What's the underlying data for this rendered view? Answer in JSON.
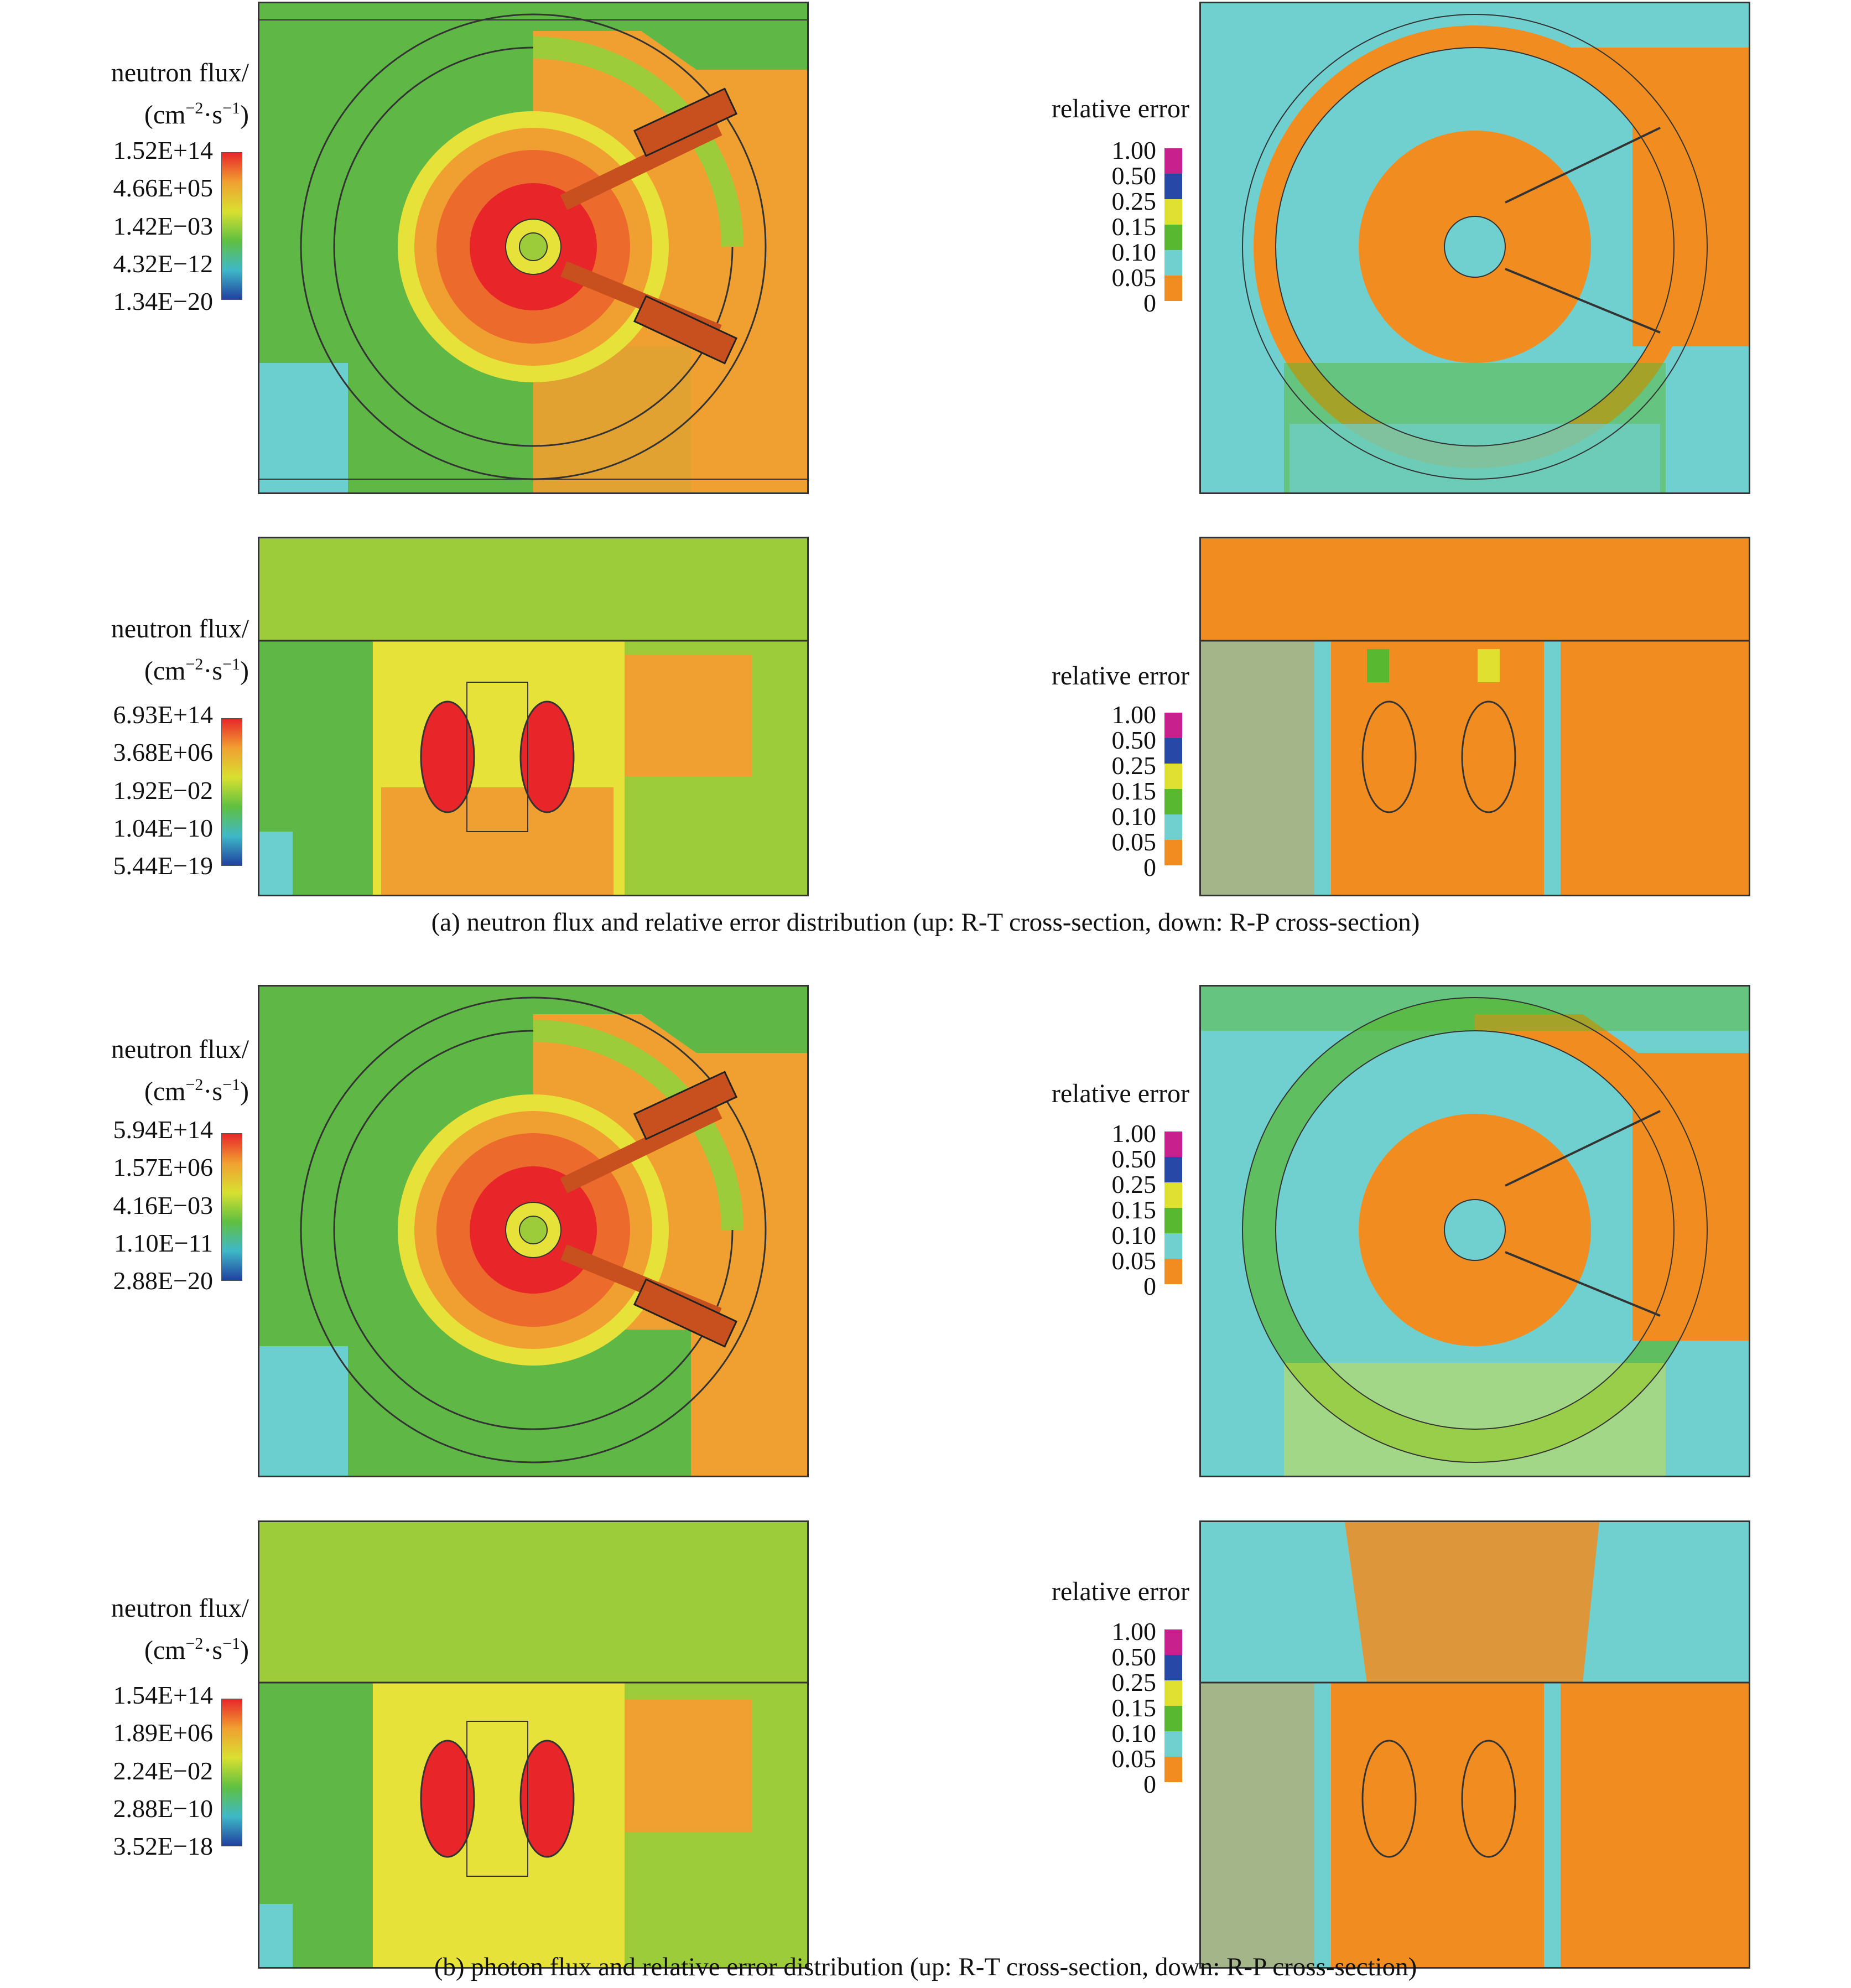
{
  "flux_legends": [
    {
      "title_line1": "neutron flux/",
      "unit_base": "(cm",
      "unit_exp1": "−2",
      "unit_mid": "·s",
      "unit_exp2": "−1",
      "unit_end": ")",
      "ticks": [
        "1.52E+14",
        "4.66E+05",
        "1.42E−03",
        "4.32E−12",
        "1.34E−20"
      ]
    },
    {
      "title_line1": "neutron flux/",
      "unit_base": "(cm",
      "unit_exp1": "−2",
      "unit_mid": "·s",
      "unit_exp2": "−1",
      "unit_end": ")",
      "ticks": [
        "6.93E+14",
        "3.68E+06",
        "1.92E−02",
        "1.04E−10",
        "5.44E−19"
      ]
    },
    {
      "title_line1": "neutron flux/",
      "unit_base": "(cm",
      "unit_exp1": "−2",
      "unit_mid": "·s",
      "unit_exp2": "−1",
      "unit_end": ")",
      "ticks": [
        "5.94E+14",
        "1.57E+06",
        "4.16E−03",
        "1.10E−11",
        "2.88E−20"
      ]
    },
    {
      "title_line1": "neutron flux/",
      "unit_base": "(cm",
      "unit_exp1": "−2",
      "unit_mid": "·s",
      "unit_exp2": "−1",
      "unit_end": ")",
      "ticks": [
        "1.54E+14",
        "1.89E+06",
        "2.24E−02",
        "2.88E−10",
        "3.52E−18"
      ]
    }
  ],
  "error_legends": [
    {
      "title": "relative error",
      "ticks": [
        "1.00",
        "0.50",
        "0.25",
        "0.15",
        "0.10",
        "0.05",
        "0"
      ]
    },
    {
      "title": "relative error",
      "ticks": [
        "1.00",
        "0.50",
        "0.25",
        "0.15",
        "0.10",
        "0.05",
        "0"
      ]
    },
    {
      "title": "relative error",
      "ticks": [
        "1.00",
        "0.50",
        "0.25",
        "0.15",
        "0.10",
        "0.05",
        "0"
      ]
    },
    {
      "title": "relative error",
      "ticks": [
        "1.00",
        "0.50",
        "0.25",
        "0.15",
        "0.10",
        "0.05",
        "0"
      ]
    }
  ],
  "error_colors": [
    "#c8208c",
    "#2848a8",
    "#e0e030",
    "#58b830",
    "#70d0d0",
    "#f08c20"
  ],
  "colors": {
    "red": "#e8262a",
    "orange": "#f0a030",
    "yellow": "#e6e23a",
    "lightgreen": "#9ccc3a",
    "green": "#5fb845",
    "cyan": "#6ccfcf",
    "err_orange": "#f08c20"
  },
  "captions": {
    "a": "(a) neutron flux and relative error distribution (up: R-T cross-section, down: R-P cross-section)",
    "b": "(b) photon flux and relative error distribution (up: R-T cross-section, down: R-P cross-section)"
  }
}
